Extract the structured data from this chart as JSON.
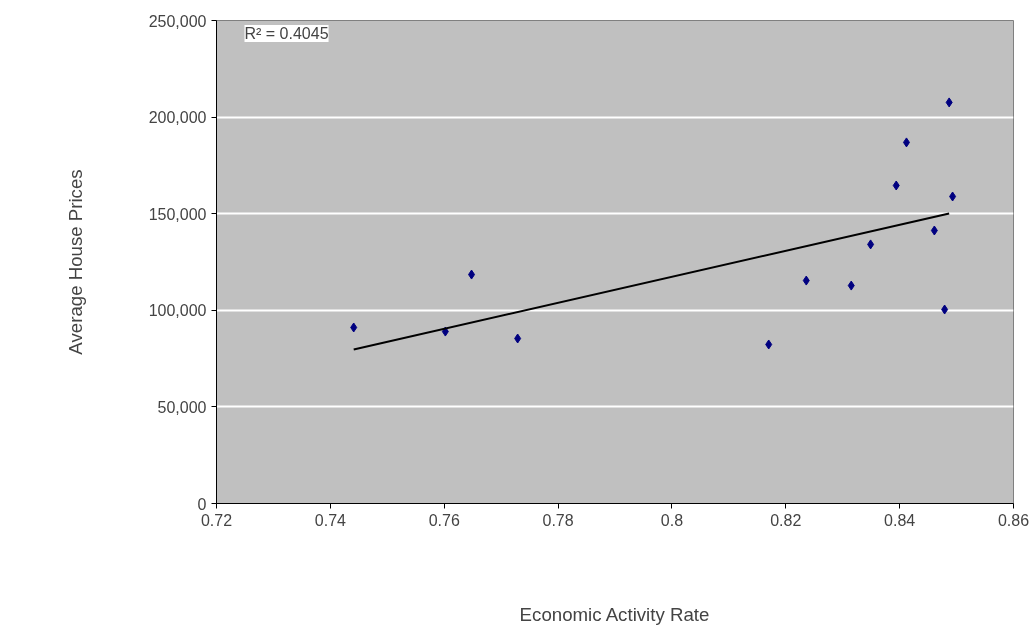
{
  "chart_data": {
    "type": "scatter",
    "xlabel": "Economic Activity Rate",
    "ylabel": "Average House Prices",
    "annotations": [
      "R² = 0.4045"
    ],
    "series": [
      {
        "color": "#000080",
        "marker": "diamond",
        "x": [
          0.7441,
          0.7602,
          0.7648,
          0.7729,
          0.817,
          0.8236,
          0.8315,
          0.8349,
          0.8394,
          0.8412,
          0.8461,
          0.8479,
          0.8493,
          0.8487
        ],
        "values": [
          91100,
          89000,
          118500,
          85400,
          82300,
          115400,
          112800,
          134100,
          164600,
          186900,
          141300,
          100400,
          158900,
          207600
        ]
      },
      {
        "type": "line",
        "color": "#000000",
        "marker": "none",
        "x": [
          0.7441,
          0.8487
        ],
        "values": [
          79700,
          150100
        ]
      }
    ],
    "xlim": [
      0.72,
      0.86
    ],
    "xticks": [
      0.72,
      0.74,
      0.76,
      0.78,
      0.8,
      0.82,
      0.84,
      0.86
    ],
    "ylim": [
      0,
      250000
    ],
    "yticks": [
      {
        "value": 0,
        "label": "0"
      },
      {
        "value": 50000,
        "label": "50,000"
      },
      {
        "value": 100000,
        "label": "100,000"
      },
      {
        "value": 150000,
        "label": "150,000"
      },
      {
        "value": 200000,
        "label": "200,000"
      },
      {
        "value": 250000,
        "label": "250,000"
      }
    ],
    "grid": "y"
  }
}
